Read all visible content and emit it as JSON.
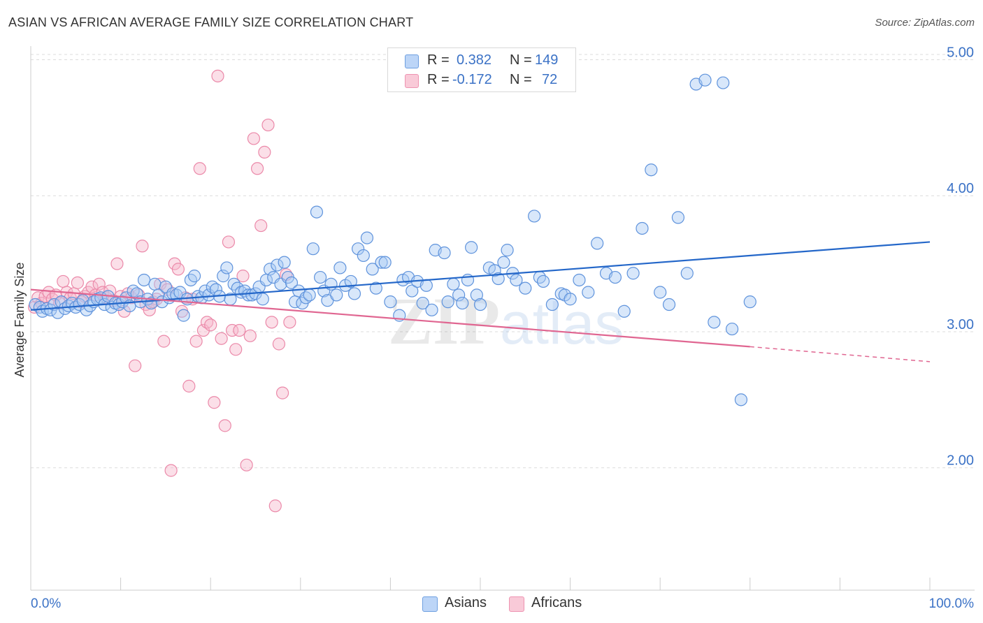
{
  "title": "ASIAN VS AFRICAN AVERAGE FAMILY SIZE CORRELATION CHART",
  "source": "Source: ZipAtlas.com",
  "legend": {
    "rows": [
      {
        "r_label": "R =",
        "r_value": "0.382",
        "n_label": "N =",
        "n_value": "149"
      },
      {
        "r_label": "R =",
        "r_value": "-0.172",
        "n_label": "N =",
        "n_value": "72"
      }
    ]
  },
  "bottom_legend": [
    "Asians",
    "Africans"
  ],
  "colors": {
    "asian_fill": "#a9c9f5",
    "asian_line": "#2467c9",
    "african_fill": "#f7b8cb",
    "african_line": "#e06691",
    "tick": "#3b72c6"
  },
  "chart_data": {
    "type": "scatter",
    "ylabel": "Average Family Size",
    "xlabel": "",
    "x_tick_labels": [
      "0.0%",
      "100.0%"
    ],
    "y_tick_labels": [
      "2.00",
      "3.00",
      "4.00",
      "5.00"
    ],
    "xlim": [
      0,
      100
    ],
    "ylim": [
      1.1,
      5.1
    ],
    "grid": true,
    "series": [
      {
        "name": "Asians",
        "trend": {
          "x": [
            0,
            100
          ],
          "y": [
            3.16,
            3.66
          ]
        },
        "points": [
          [
            0.5,
            3.2
          ],
          [
            1,
            3.18
          ],
          [
            1.3,
            3.15
          ],
          [
            1.8,
            3.17
          ],
          [
            2.2,
            3.16
          ],
          [
            2.6,
            3.2
          ],
          [
            3,
            3.14
          ],
          [
            3.4,
            3.22
          ],
          [
            3.8,
            3.17
          ],
          [
            4.2,
            3.19
          ],
          [
            4.6,
            3.21
          ],
          [
            5,
            3.18
          ],
          [
            5.4,
            3.2
          ],
          [
            5.8,
            3.23
          ],
          [
            6.2,
            3.16
          ],
          [
            6.6,
            3.19
          ],
          [
            7,
            3.22
          ],
          [
            7.4,
            3.24
          ],
          [
            7.8,
            3.25
          ],
          [
            8.2,
            3.2
          ],
          [
            8.6,
            3.26
          ],
          [
            9,
            3.18
          ],
          [
            9.4,
            3.21
          ],
          [
            9.8,
            3.2
          ],
          [
            10.2,
            3.22
          ],
          [
            10.6,
            3.25
          ],
          [
            11,
            3.19
          ],
          [
            11.4,
            3.3
          ],
          [
            11.8,
            3.28
          ],
          [
            12.2,
            3.22
          ],
          [
            12.6,
            3.38
          ],
          [
            13,
            3.24
          ],
          [
            13.4,
            3.21
          ],
          [
            13.8,
            3.35
          ],
          [
            14.2,
            3.27
          ],
          [
            14.6,
            3.22
          ],
          [
            15,
            3.33
          ],
          [
            15.4,
            3.25
          ],
          [
            15.8,
            3.28
          ],
          [
            16.2,
            3.27
          ],
          [
            16.6,
            3.29
          ],
          [
            17,
            3.12
          ],
          [
            17.4,
            3.24
          ],
          [
            17.8,
            3.38
          ],
          [
            18.2,
            3.41
          ],
          [
            18.6,
            3.26
          ],
          [
            19,
            3.25
          ],
          [
            19.4,
            3.3
          ],
          [
            19.8,
            3.27
          ],
          [
            20.2,
            3.33
          ],
          [
            20.6,
            3.31
          ],
          [
            21,
            3.26
          ],
          [
            21.4,
            3.41
          ],
          [
            21.8,
            3.47
          ],
          [
            22.2,
            3.24
          ],
          [
            22.6,
            3.35
          ],
          [
            23,
            3.32
          ],
          [
            23.4,
            3.29
          ],
          [
            23.8,
            3.3
          ],
          [
            24.2,
            3.27
          ],
          [
            24.6,
            3.27
          ],
          [
            25,
            3.28
          ],
          [
            25.4,
            3.33
          ],
          [
            25.8,
            3.24
          ],
          [
            26.2,
            3.38
          ],
          [
            26.6,
            3.46
          ],
          [
            27,
            3.4
          ],
          [
            27.4,
            3.49
          ],
          [
            27.8,
            3.35
          ],
          [
            28.2,
            3.51
          ],
          [
            28.6,
            3.4
          ],
          [
            29,
            3.36
          ],
          [
            29.4,
            3.22
          ],
          [
            29.8,
            3.3
          ],
          [
            30.2,
            3.21
          ],
          [
            30.6,
            3.25
          ],
          [
            31,
            3.27
          ],
          [
            31.4,
            3.61
          ],
          [
            31.8,
            3.88
          ],
          [
            32.2,
            3.4
          ],
          [
            32.6,
            3.3
          ],
          [
            33,
            3.23
          ],
          [
            33.4,
            3.35
          ],
          [
            34,
            3.27
          ],
          [
            34.4,
            3.47
          ],
          [
            35,
            3.34
          ],
          [
            35.6,
            3.37
          ],
          [
            36,
            3.28
          ],
          [
            36.4,
            3.61
          ],
          [
            37,
            3.56
          ],
          [
            37.4,
            3.69
          ],
          [
            38,
            3.46
          ],
          [
            38.4,
            3.32
          ],
          [
            39,
            3.51
          ],
          [
            39.4,
            3.51
          ],
          [
            40,
            3.22
          ],
          [
            41,
            3.12
          ],
          [
            41.4,
            3.38
          ],
          [
            42,
            3.4
          ],
          [
            42.4,
            3.3
          ],
          [
            43,
            3.37
          ],
          [
            43.6,
            3.21
          ],
          [
            44,
            3.34
          ],
          [
            44.6,
            3.16
          ],
          [
            45,
            3.6
          ],
          [
            46,
            3.58
          ],
          [
            46.4,
            3.22
          ],
          [
            47,
            3.35
          ],
          [
            47.6,
            3.27
          ],
          [
            48,
            3.21
          ],
          [
            48.6,
            3.38
          ],
          [
            49,
            3.62
          ],
          [
            49.6,
            3.27
          ],
          [
            50,
            3.2
          ],
          [
            51,
            3.47
          ],
          [
            51.6,
            3.45
          ],
          [
            52,
            3.39
          ],
          [
            52.6,
            3.51
          ],
          [
            53,
            3.6
          ],
          [
            53.6,
            3.43
          ],
          [
            54,
            3.38
          ],
          [
            55,
            3.32
          ],
          [
            56,
            3.85
          ],
          [
            56.6,
            3.4
          ],
          [
            57,
            3.37
          ],
          [
            58,
            3.2
          ],
          [
            59,
            3.28
          ],
          [
            59.4,
            3.27
          ],
          [
            60,
            3.24
          ],
          [
            61,
            3.38
          ],
          [
            62,
            3.29
          ],
          [
            63,
            3.65
          ],
          [
            64,
            3.43
          ],
          [
            65,
            3.4
          ],
          [
            66,
            3.15
          ],
          [
            67,
            3.43
          ],
          [
            68,
            3.76
          ],
          [
            69,
            4.19
          ],
          [
            70,
            3.29
          ],
          [
            71,
            3.2
          ],
          [
            72,
            3.84
          ],
          [
            73,
            3.43
          ],
          [
            74,
            4.82
          ],
          [
            75,
            4.85
          ],
          [
            76,
            3.07
          ],
          [
            77,
            4.83
          ],
          [
            78,
            3.02
          ],
          [
            79,
            2.5
          ],
          [
            80,
            3.22
          ]
        ]
      },
      {
        "name": "Africans",
        "trend": {
          "x": [
            0,
            80
          ],
          "y": [
            3.31,
            2.89
          ],
          "dashed_to": {
            "x": 100,
            "y": 2.78
          }
        },
        "points": [
          [
            0.4,
            3.18
          ],
          [
            0.8,
            3.25
          ],
          [
            1.2,
            3.21
          ],
          [
            1.6,
            3.26
          ],
          [
            2,
            3.29
          ],
          [
            2.4,
            3.24
          ],
          [
            2.8,
            3.27
          ],
          [
            3.2,
            3.21
          ],
          [
            3.6,
            3.37
          ],
          [
            4,
            3.29
          ],
          [
            4.4,
            3.25
          ],
          [
            4.8,
            3.28
          ],
          [
            5.2,
            3.36
          ],
          [
            5.6,
            3.22
          ],
          [
            6,
            3.26
          ],
          [
            6.4,
            3.29
          ],
          [
            6.8,
            3.33
          ],
          [
            7.2,
            3.27
          ],
          [
            7.6,
            3.35
          ],
          [
            8,
            3.29
          ],
          [
            8.4,
            3.25
          ],
          [
            8.8,
            3.3
          ],
          [
            9.2,
            3.23
          ],
          [
            9.6,
            3.5
          ],
          [
            10,
            3.26
          ],
          [
            10.4,
            3.15
          ],
          [
            10.8,
            3.28
          ],
          [
            11.2,
            3.25
          ],
          [
            11.6,
            2.75
          ],
          [
            12,
            3.27
          ],
          [
            12.4,
            3.63
          ],
          [
            12.8,
            3.2
          ],
          [
            13.2,
            3.16
          ],
          [
            13.6,
            3.22
          ],
          [
            14,
            3.24
          ],
          [
            14.4,
            3.35
          ],
          [
            14.8,
            2.93
          ],
          [
            15.2,
            3.31
          ],
          [
            15.6,
            1.98
          ],
          [
            16,
            3.5
          ],
          [
            16.4,
            3.46
          ],
          [
            16.8,
            3.15
          ],
          [
            17.2,
            3.25
          ],
          [
            17.6,
            2.6
          ],
          [
            18,
            3.24
          ],
          [
            18.4,
            2.93
          ],
          [
            18.8,
            4.2
          ],
          [
            19.2,
            3.01
          ],
          [
            19.6,
            3.07
          ],
          [
            20,
            3.05
          ],
          [
            20.4,
            2.48
          ],
          [
            20.8,
            4.88
          ],
          [
            21.2,
            2.95
          ],
          [
            21.6,
            2.31
          ],
          [
            22,
            3.66
          ],
          [
            22.4,
            3.01
          ],
          [
            22.8,
            2.87
          ],
          [
            23.2,
            3.01
          ],
          [
            23.6,
            3.41
          ],
          [
            24,
            2.02
          ],
          [
            24.4,
            2.97
          ],
          [
            24.8,
            4.42
          ],
          [
            25.2,
            4.2
          ],
          [
            25.6,
            3.78
          ],
          [
            26,
            4.32
          ],
          [
            26.4,
            4.52
          ],
          [
            26.8,
            3.07
          ],
          [
            27.2,
            1.72
          ],
          [
            27.6,
            2.91
          ],
          [
            28,
            2.55
          ],
          [
            28.4,
            3.42
          ],
          [
            28.8,
            3.07
          ]
        ]
      }
    ]
  }
}
